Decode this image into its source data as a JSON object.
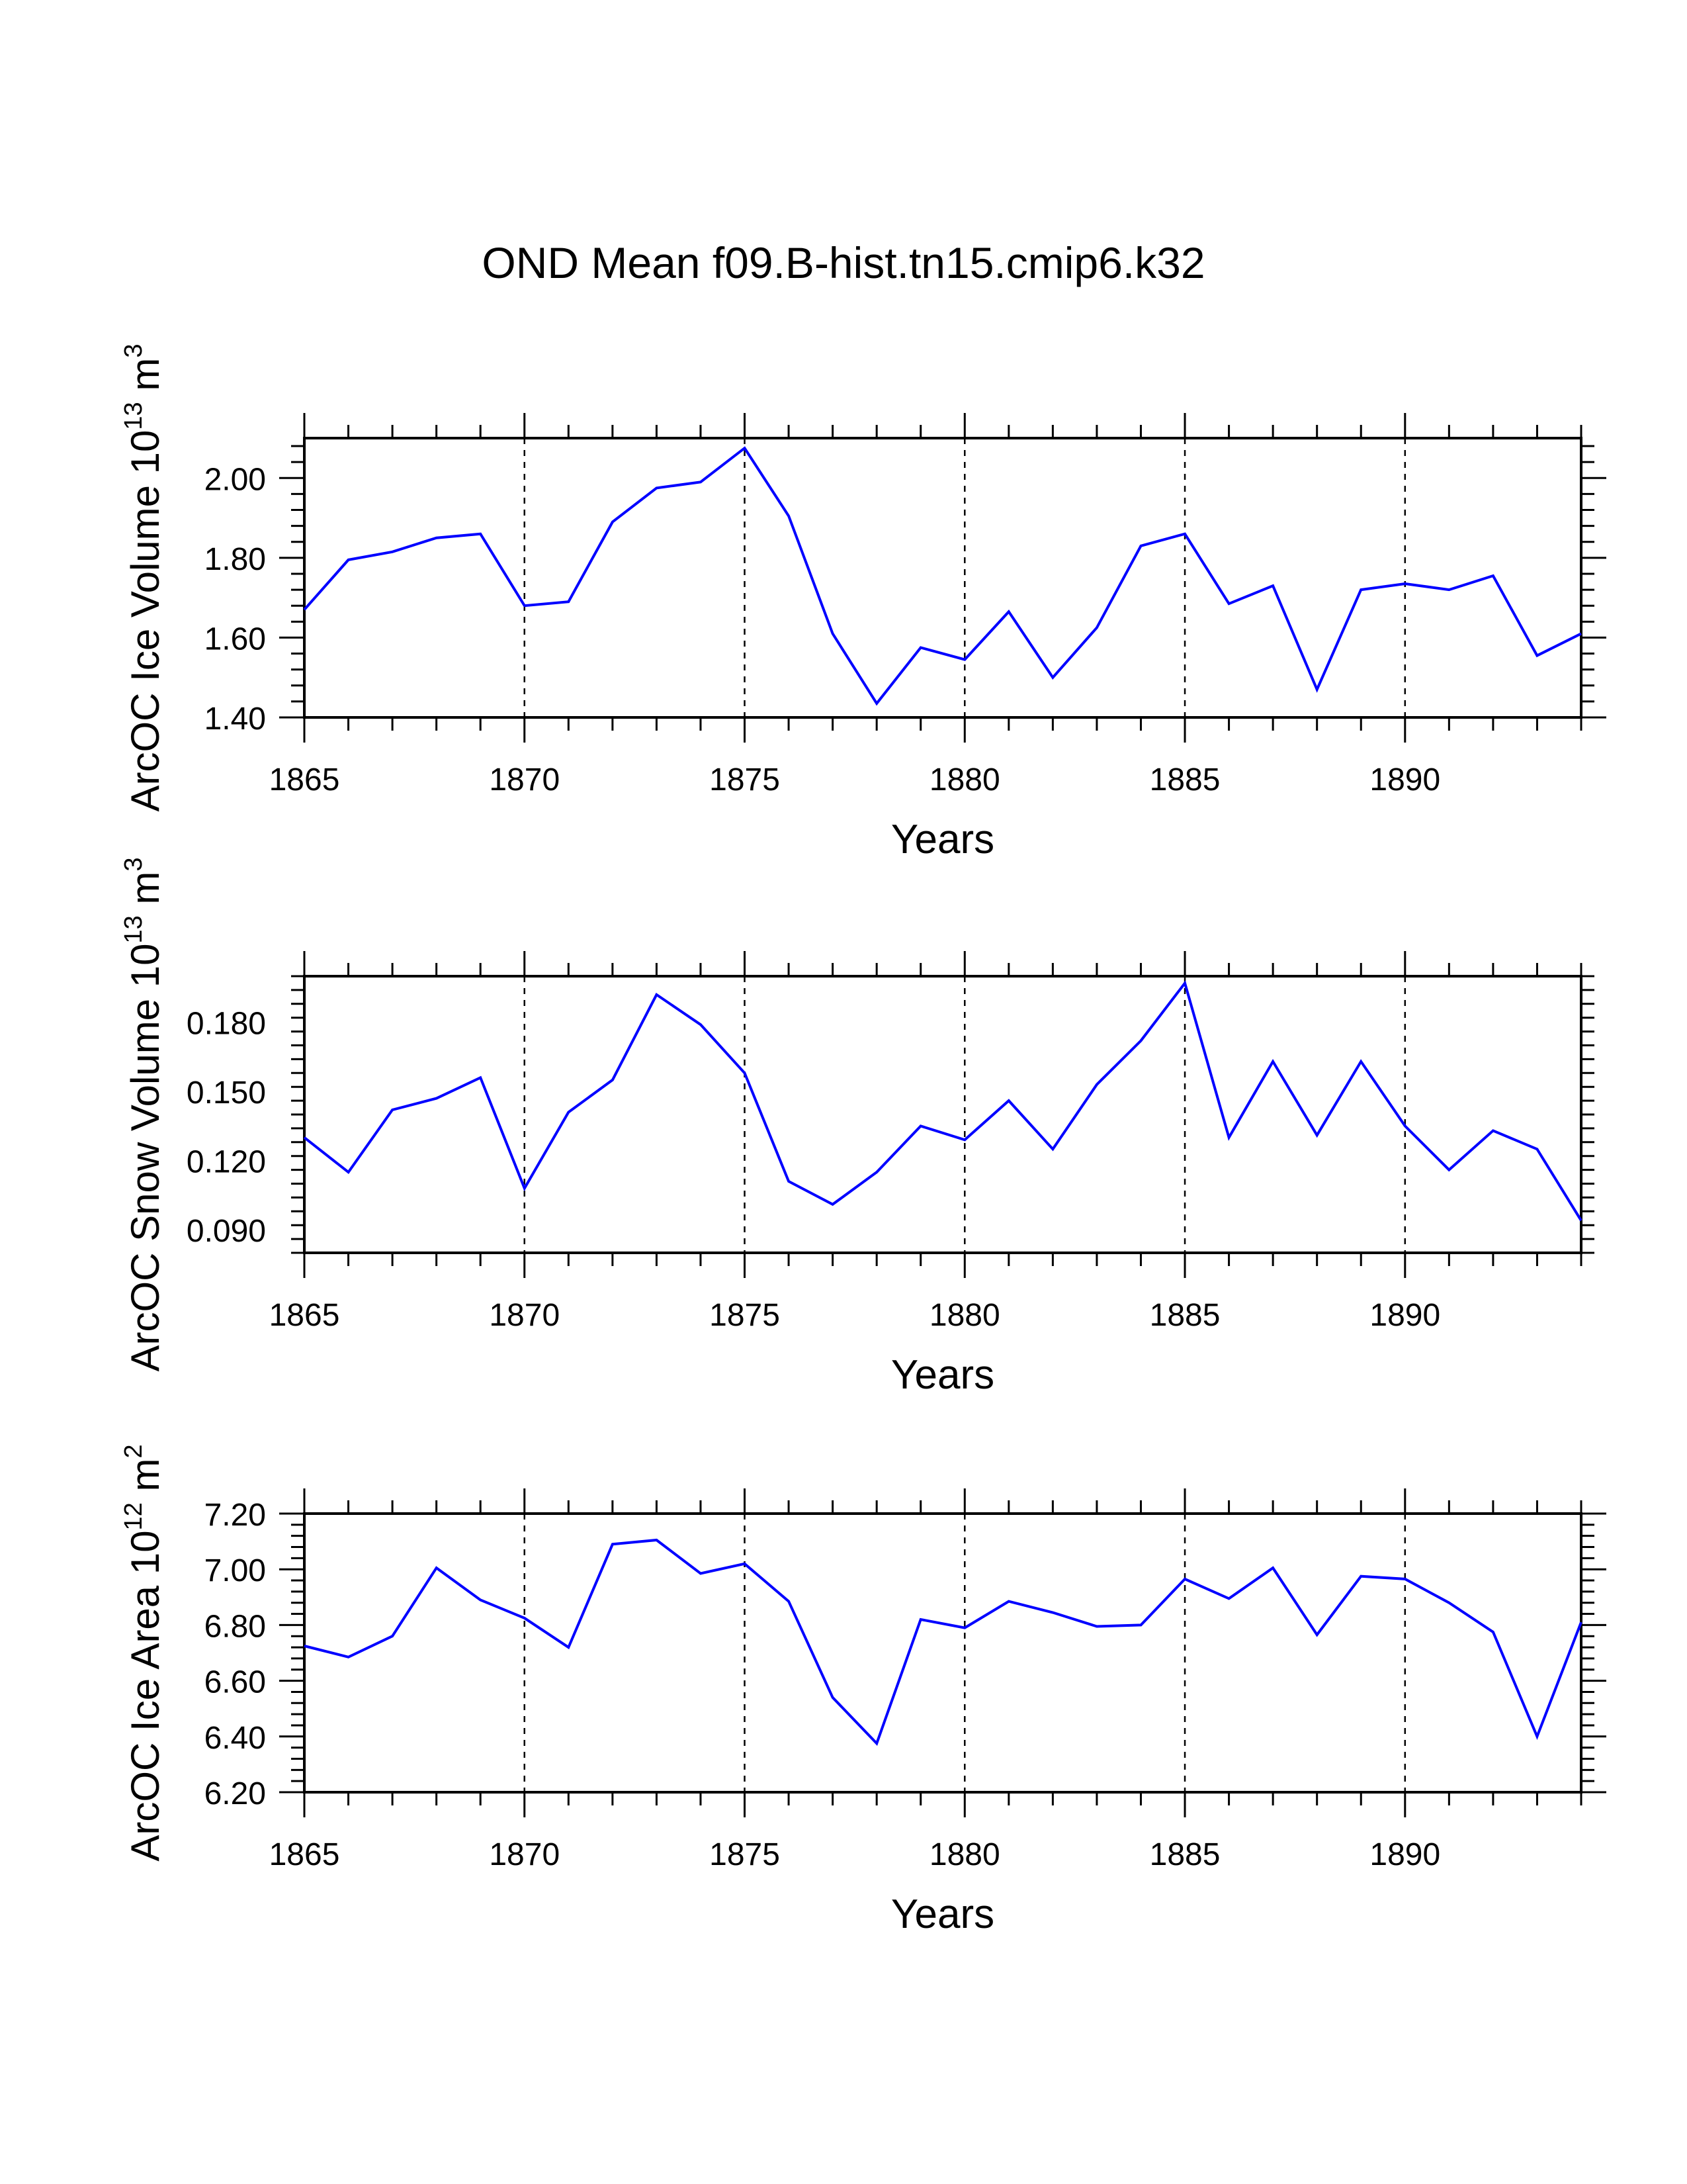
{
  "figure_title": "OND Mean f09.B-hist.tn15.cmip6.k32",
  "chart_data": [
    {
      "type": "line",
      "ylabel": "ArcOC Ice Volume 10",
      "ylabel_exp": "13",
      "ylabel_unit": " m",
      "ylabel_unit_exp": "3",
      "xlabel": "Years",
      "xlim": [
        1865,
        1894
      ],
      "ylim": [
        1.4,
        2.1
      ],
      "yticks": [
        1.4,
        1.6,
        1.8,
        2.0
      ],
      "ytick_labels": [
        "1.40",
        "1.60",
        "1.80",
        "2.00"
      ],
      "xticks": [
        1865,
        1870,
        1875,
        1880,
        1885,
        1890
      ],
      "xtick_labels": [
        "1865",
        "1870",
        "1875",
        "1880",
        "1885",
        "1890"
      ],
      "line_color": "#0000ff",
      "x": [
        1865,
        1866,
        1867,
        1868,
        1869,
        1870,
        1871,
        1872,
        1873,
        1874,
        1875,
        1876,
        1877,
        1878,
        1879,
        1880,
        1881,
        1882,
        1883,
        1884,
        1885,
        1886,
        1887,
        1888,
        1889,
        1890,
        1891,
        1892,
        1893,
        1894
      ],
      "values": [
        1.67,
        1.795,
        1.815,
        1.85,
        1.86,
        1.68,
        1.69,
        1.89,
        1.975,
        1.99,
        2.075,
        1.905,
        1.61,
        1.435,
        1.575,
        1.545,
        1.665,
        1.5,
        1.625,
        1.83,
        1.86,
        1.685,
        1.73,
        1.47,
        1.72,
        1.735,
        1.72,
        1.755,
        1.555,
        1.61
      ]
    },
    {
      "type": "line",
      "ylabel": "ArcOC Snow Volume 10",
      "ylabel_exp": "13",
      "ylabel_unit": " m",
      "ylabel_unit_exp": "3",
      "xlabel": "Years",
      "xlim": [
        1865,
        1894
      ],
      "ylim": [
        0.08,
        0.2
      ],
      "yticks": [
        0.09,
        0.12,
        0.15,
        0.18
      ],
      "ytick_labels": [
        "0.090",
        "0.120",
        "0.150",
        "0.180"
      ],
      "xticks": [
        1865,
        1870,
        1875,
        1880,
        1885,
        1890
      ],
      "xtick_labels": [
        "1865",
        "1870",
        "1875",
        "1880",
        "1885",
        "1890"
      ],
      "line_color": "#0000ff",
      "x": [
        1865,
        1866,
        1867,
        1868,
        1869,
        1870,
        1871,
        1872,
        1873,
        1874,
        1875,
        1876,
        1877,
        1878,
        1879,
        1880,
        1881,
        1882,
        1883,
        1884,
        1885,
        1886,
        1887,
        1888,
        1889,
        1890,
        1891,
        1892,
        1893,
        1894
      ],
      "values": [
        0.13,
        0.115,
        0.142,
        0.147,
        0.156,
        0.108,
        0.141,
        0.155,
        0.192,
        0.179,
        0.158,
        0.111,
        0.101,
        0.115,
        0.135,
        0.129,
        0.146,
        0.125,
        0.153,
        0.172,
        0.197,
        0.13,
        0.163,
        0.131,
        0.163,
        0.135,
        0.116,
        0.133,
        0.125,
        0.094
      ]
    },
    {
      "type": "line",
      "ylabel": "ArcOC Ice Area 10",
      "ylabel_exp": "12",
      "ylabel_unit": " m",
      "ylabel_unit_exp": "2",
      "xlabel": "Years",
      "xlim": [
        1865,
        1894
      ],
      "ylim": [
        6.2,
        7.2
      ],
      "yticks": [
        6.2,
        6.4,
        6.6,
        6.8,
        7.0,
        7.2
      ],
      "ytick_labels": [
        "6.20",
        "6.40",
        "6.60",
        "6.80",
        "7.00",
        "7.20"
      ],
      "xticks": [
        1865,
        1870,
        1875,
        1880,
        1885,
        1890
      ],
      "xtick_labels": [
        "1865",
        "1870",
        "1875",
        "1880",
        "1885",
        "1890"
      ],
      "line_color": "#0000ff",
      "x": [
        1865,
        1866,
        1867,
        1868,
        1869,
        1870,
        1871,
        1872,
        1873,
        1874,
        1875,
        1876,
        1877,
        1878,
        1879,
        1880,
        1881,
        1882,
        1883,
        1884,
        1885,
        1886,
        1887,
        1888,
        1889,
        1890,
        1891,
        1892,
        1893,
        1894
      ],
      "values": [
        6.725,
        6.685,
        6.76,
        7.005,
        6.89,
        6.825,
        6.72,
        7.09,
        7.105,
        6.985,
        7.02,
        6.885,
        6.54,
        6.375,
        6.82,
        6.79,
        6.885,
        6.845,
        6.795,
        6.8,
        6.965,
        6.895,
        7.005,
        6.765,
        6.975,
        6.965,
        6.88,
        6.775,
        6.4,
        6.81
      ]
    }
  ]
}
